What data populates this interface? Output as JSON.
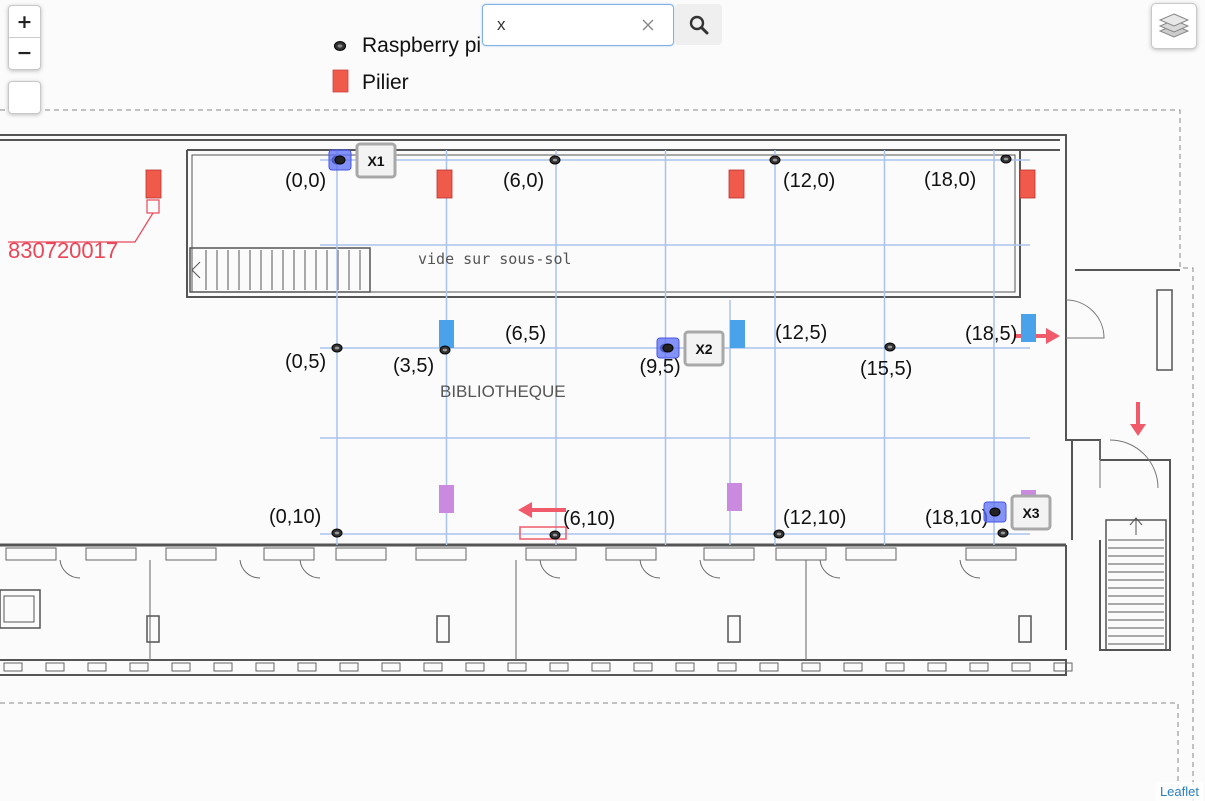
{
  "controls": {
    "zoom_in": "+",
    "zoom_out": "−"
  },
  "search": {
    "value": "x",
    "clear": "×"
  },
  "legend": {
    "raspberry_label": "Raspberry pi",
    "pillar_label": "Pilier"
  },
  "floorplan": {
    "annotation": "830720017",
    "zone_label": "vide sur sous-sol",
    "room_label": "BIBLIOTHEQUE"
  },
  "grid_points": [
    {
      "label": "(0,0)",
      "x": 0,
      "y": 0
    },
    {
      "label": "(6,0)",
      "x": 6,
      "y": 0
    },
    {
      "label": "(12,0)",
      "x": 12,
      "y": 0
    },
    {
      "label": "(18,0)",
      "x": 18,
      "y": 0
    },
    {
      "label": "(0,5)",
      "x": 0,
      "y": 5
    },
    {
      "label": "(3,5)",
      "x": 3,
      "y": 5
    },
    {
      "label": "(6,5)",
      "x": 6,
      "y": 5
    },
    {
      "label": "(9,5)",
      "x": 9,
      "y": 5
    },
    {
      "label": "(12,5)",
      "x": 12,
      "y": 5
    },
    {
      "label": "(15,5)",
      "x": 15,
      "y": 5
    },
    {
      "label": "(18,5)",
      "x": 18,
      "y": 5
    },
    {
      "label": "(0,10)",
      "x": 0,
      "y": 10
    },
    {
      "label": "(6,10)",
      "x": 6,
      "y": 10
    },
    {
      "label": "(12,10)",
      "x": 12,
      "y": 10
    },
    {
      "label": "(18,10)",
      "x": 18,
      "y": 10
    }
  ],
  "markers": [
    {
      "label": "X1"
    },
    {
      "label": "X2"
    },
    {
      "label": "X3"
    }
  ],
  "colors": {
    "pillar_red": "#f05a4a",
    "pillar_blue": "#4aa3ea",
    "pillar_purple": "#c98ae0",
    "marker_blue": "#5b6ff5",
    "annotation_red": "#e8485a",
    "grid_line": "#a9c3ec"
  },
  "attribution": "Leaflet"
}
